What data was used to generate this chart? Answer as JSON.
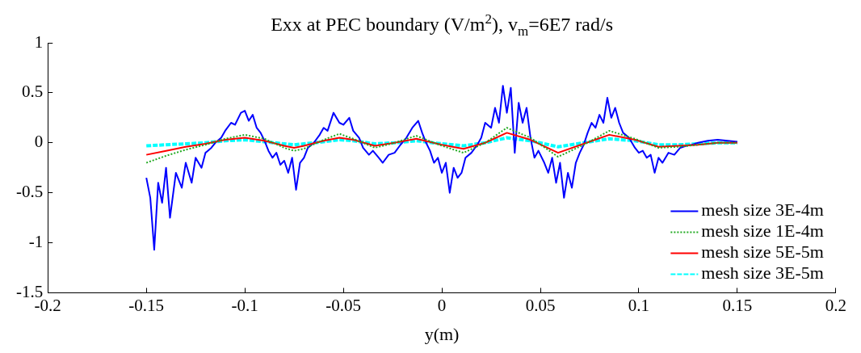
{
  "chart_data": {
    "type": "line",
    "title": "Exx at PEC boundary (V/m$^{2}$), v$_{m}$=6E7 rad/s",
    "xlabel": "y(m)",
    "xlim": [
      -0.2,
      0.2
    ],
    "xticks": [
      -0.2,
      -0.15,
      -0.1,
      -0.05,
      0,
      0.05,
      0.1,
      0.15,
      0.2
    ],
    "ylim": [
      -1.5,
      1
    ],
    "yticks": [
      -1.5,
      -1,
      -0.5,
      0,
      0.5,
      1
    ],
    "grid": false,
    "legend": "bottom right",
    "marker": "none",
    "series": [
      {
        "name": "mesh size 3E-4m",
        "color": "#0000ff",
        "line_style": "solid",
        "x": [
          -0.15,
          -0.148,
          -0.146,
          -0.144,
          -0.142,
          -0.14,
          -0.138,
          -0.135,
          -0.132,
          -0.13,
          -0.127,
          -0.125,
          -0.122,
          -0.12,
          -0.117,
          -0.115,
          -0.112,
          -0.11,
          -0.107,
          -0.105,
          -0.102,
          -0.1,
          -0.098,
          -0.096,
          -0.094,
          -0.092,
          -0.09,
          -0.088,
          -0.086,
          -0.084,
          -0.082,
          -0.08,
          -0.078,
          -0.076,
          -0.074,
          -0.072,
          -0.07,
          -0.068,
          -0.065,
          -0.062,
          -0.06,
          -0.058,
          -0.055,
          -0.052,
          -0.05,
          -0.047,
          -0.045,
          -0.042,
          -0.04,
          -0.037,
          -0.035,
          -0.032,
          -0.03,
          -0.027,
          -0.024,
          -0.021,
          -0.018,
          -0.015,
          -0.012,
          -0.01,
          -0.008,
          -0.006,
          -0.004,
          -0.002,
          0,
          0.002,
          0.004,
          0.006,
          0.008,
          0.01,
          0.012,
          0.015,
          0.018,
          0.02,
          0.022,
          0.025,
          0.027,
          0.029,
          0.031,
          0.033,
          0.035,
          0.037,
          0.039,
          0.041,
          0.043,
          0.045,
          0.047,
          0.049,
          0.052,
          0.054,
          0.056,
          0.058,
          0.06,
          0.062,
          0.064,
          0.066,
          0.068,
          0.07,
          0.072,
          0.074,
          0.076,
          0.078,
          0.08,
          0.082,
          0.084,
          0.086,
          0.088,
          0.09,
          0.092,
          0.095,
          0.098,
          0.1,
          0.102,
          0.104,
          0.106,
          0.108,
          0.11,
          0.112,
          0.115,
          0.118,
          0.121,
          0.124,
          0.127,
          0.13,
          0.135,
          0.14,
          0.145,
          0.15
        ],
        "values": [
          -0.35,
          -0.55,
          -1.07,
          -0.4,
          -0.6,
          -0.25,
          -0.75,
          -0.3,
          -0.45,
          -0.2,
          -0.4,
          -0.15,
          -0.25,
          -0.1,
          -0.05,
          0,
          0.05,
          0.12,
          0.2,
          0.18,
          0.3,
          0.32,
          0.22,
          0.28,
          0.15,
          0.1,
          0.02,
          -0.08,
          -0.15,
          -0.1,
          -0.22,
          -0.18,
          -0.3,
          -0.15,
          -0.47,
          -0.2,
          -0.15,
          -0.05,
          0,
          0.08,
          0.15,
          0.12,
          0.3,
          0.2,
          0.18,
          0.25,
          0.12,
          0.05,
          -0.05,
          -0.12,
          -0.08,
          -0.15,
          -0.2,
          -0.12,
          -0.1,
          -0.02,
          0.05,
          0.15,
          0.22,
          0.1,
          0,
          -0.08,
          -0.2,
          -0.15,
          -0.3,
          -0.2,
          -0.5,
          -0.25,
          -0.35,
          -0.3,
          -0.15,
          -0.1,
          -0.02,
          0.05,
          0.2,
          0.15,
          0.35,
          0.2,
          0.57,
          0.3,
          0.55,
          -0.1,
          0.4,
          0.2,
          0.35,
          0.05,
          -0.15,
          -0.08,
          -0.2,
          -0.3,
          -0.15,
          -0.4,
          -0.2,
          -0.55,
          -0.3,
          -0.45,
          -0.2,
          -0.1,
          -0.02,
          0.1,
          0.2,
          0.15,
          0.28,
          0.2,
          0.45,
          0.25,
          0.35,
          0.2,
          0.1,
          0.05,
          -0.05,
          -0.1,
          -0.08,
          -0.15,
          -0.12,
          -0.3,
          -0.15,
          -0.2,
          -0.1,
          -0.12,
          -0.05,
          -0.03,
          -0.02,
          0,
          0.02,
          0.03,
          0.02,
          0.01
        ]
      },
      {
        "name": "mesh size 1E-4m",
        "color": "#22aa22",
        "line_style": "dotted",
        "x": [
          -0.15,
          -0.14,
          -0.13,
          -0.12,
          -0.11,
          -0.1,
          -0.09,
          -0.08,
          -0.075,
          -0.07,
          -0.06,
          -0.052,
          -0.045,
          -0.034,
          -0.024,
          -0.013,
          0,
          0.011,
          0.022,
          0.033,
          0.045,
          0.059,
          0.072,
          0.085,
          0.098,
          0.11,
          0.12,
          0.13,
          0.14,
          0.15
        ],
        "values": [
          -0.2,
          -0.13,
          -0.07,
          -0.02,
          0.04,
          0.08,
          0.04,
          -0.05,
          -0.08,
          -0.06,
          0.03,
          0.09,
          0.04,
          -0.05,
          0,
          0.07,
          -0.03,
          -0.1,
          0,
          0.15,
          0.05,
          -0.14,
          -0.02,
          0.12,
          0.04,
          -0.05,
          -0.04,
          -0.02,
          0,
          0
        ]
      },
      {
        "name": "mesh size 5E-5m",
        "color": "#ff0000",
        "line_style": "solid",
        "x": [
          -0.15,
          -0.14,
          -0.13,
          -0.12,
          -0.11,
          -0.1,
          -0.09,
          -0.08,
          -0.075,
          -0.07,
          -0.06,
          -0.052,
          -0.045,
          -0.034,
          -0.024,
          -0.013,
          0,
          0.011,
          0.022,
          0.033,
          0.045,
          0.059,
          0.072,
          0.085,
          0.098,
          0.11,
          0.12,
          0.13,
          0.14,
          0.15
        ],
        "values": [
          -0.12,
          -0.08,
          -0.04,
          -0.01,
          0.03,
          0.05,
          0.02,
          -0.03,
          -0.05,
          -0.03,
          0.02,
          0.05,
          0.03,
          -0.03,
          0,
          0.04,
          -0.02,
          -0.06,
          0,
          0.1,
          0.03,
          -0.1,
          -0.01,
          0.08,
          0.03,
          -0.04,
          -0.03,
          -0.02,
          0,
          0
        ]
      },
      {
        "name": "mesh size 3E-5m",
        "color": "#00ffff",
        "line_style": "dashed",
        "x": [
          -0.15,
          -0.14,
          -0.13,
          -0.12,
          -0.11,
          -0.1,
          -0.09,
          -0.08,
          -0.075,
          -0.07,
          -0.06,
          -0.052,
          -0.045,
          -0.034,
          -0.024,
          -0.013,
          0,
          0.011,
          0.022,
          0.033,
          0.045,
          0.059,
          0.072,
          0.085,
          0.098,
          0.11,
          0.12,
          0.13,
          0.14,
          0.15
        ],
        "values": [
          -0.03,
          -0.02,
          -0.01,
          0,
          0.02,
          0.03,
          0.01,
          -0.01,
          -0.02,
          -0.01,
          0.01,
          0.03,
          0.02,
          -0.01,
          0,
          0.02,
          -0.01,
          -0.03,
          0,
          0.05,
          0.02,
          -0.04,
          0,
          0.04,
          0.02,
          -0.02,
          -0.02,
          -0.01,
          0,
          0
        ]
      }
    ]
  }
}
